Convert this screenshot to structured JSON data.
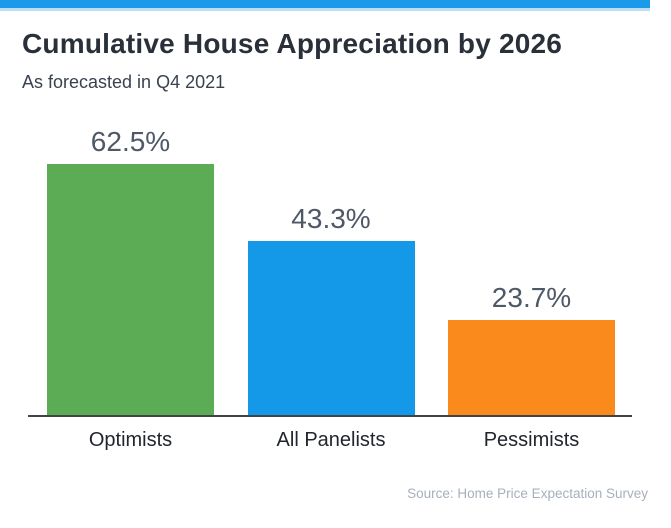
{
  "accent": {
    "bar_color": "#1b9ae9",
    "underline_color": "#bcdff7"
  },
  "header": {
    "title": "Cumulative House Appreciation by 2026",
    "subtitle": "As forecasted in Q4 2021"
  },
  "chart_data": {
    "type": "bar",
    "title": "Cumulative House Appreciation by 2026",
    "subtitle": "As forecasted in Q4 2021",
    "categories": [
      "Optimists",
      "All Panelists",
      "Pessimists"
    ],
    "values": [
      62.5,
      43.3,
      23.7
    ],
    "value_labels": [
      "62.5%",
      "43.3%",
      "23.7%"
    ],
    "bar_colors": [
      "#5cac55",
      "#1499e9",
      "#fb8a1c"
    ],
    "xlabel": "",
    "ylabel": "",
    "ylim": [
      0,
      65
    ],
    "grid": false,
    "legend": false,
    "value_label_color": "#4e5866",
    "category_label_color": "#21262e",
    "axis_color": "#3f444b"
  },
  "footer": {
    "source": "Source: Home Price Expectation Survey"
  }
}
